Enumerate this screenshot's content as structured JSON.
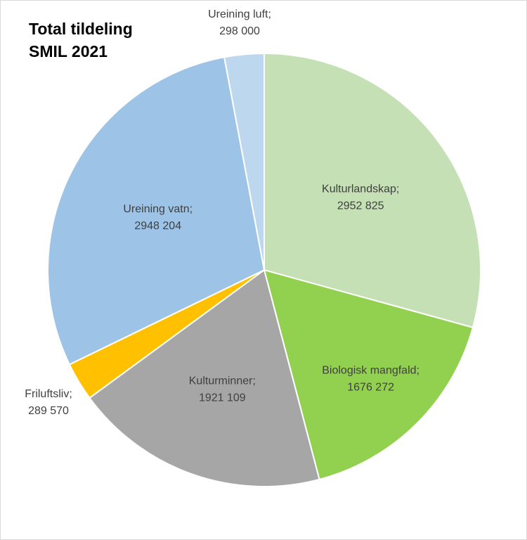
{
  "chart_data": {
    "type": "pie",
    "title": "Total tildeling\nSMIL 2021",
    "slices": [
      {
        "category": "Kulturlandskap",
        "value": 2952825,
        "value_label": "2952 825",
        "color": "#c5e0b4"
      },
      {
        "category": "Biologisk mangfald",
        "value": 1676272,
        "value_label": "1676 272",
        "color": "#92d050"
      },
      {
        "category": "Kulturminner",
        "value": 1921109,
        "value_label": "1921 109",
        "color": "#a6a6a6"
      },
      {
        "category": "Friluftsliv",
        "value": 289570,
        "value_label": "289 570",
        "color": "#ffc000"
      },
      {
        "category": "Ureining vatn",
        "value": 2948204,
        "value_label": "2948 204",
        "color": "#9dc3e6"
      },
      {
        "category": "Ureining luft",
        "value": 298000,
        "value_label": "298 000",
        "color": "#bdd7ee"
      }
    ],
    "start_angle_deg": 0,
    "direction": "clockwise",
    "legend": "none",
    "label_separator": ";"
  }
}
